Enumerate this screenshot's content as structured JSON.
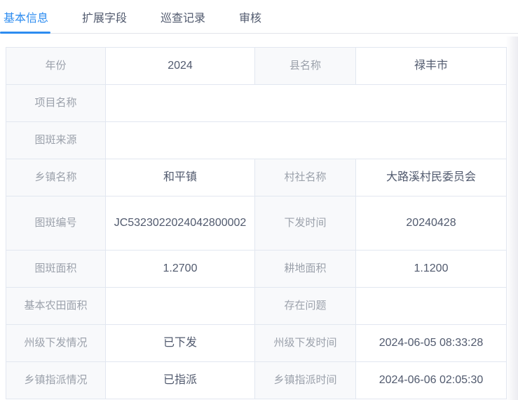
{
  "tabs": {
    "items": [
      {
        "label": "基本信息",
        "active": true
      },
      {
        "label": "扩展字段",
        "active": false
      },
      {
        "label": "巡查记录",
        "active": false
      },
      {
        "label": "审核",
        "active": false
      }
    ]
  },
  "colors": {
    "primary": "#2d8cf0",
    "tab_inactive_text": "#515a6e",
    "table_border": "#e2e7f0",
    "label_cell_bg": "#f8f9fb",
    "label_text": "#9ba1ab",
    "value_text": "#515a6e"
  },
  "detail_table": {
    "rows": [
      {
        "tall": false,
        "span_full": false,
        "pairs": [
          {
            "label": "年份",
            "value": "2024"
          },
          {
            "label": "县名称",
            "value": "禄丰市"
          }
        ]
      },
      {
        "tall": false,
        "span_full": true,
        "pairs": [
          {
            "label": "项目名称",
            "value": ""
          }
        ]
      },
      {
        "tall": false,
        "span_full": true,
        "pairs": [
          {
            "label": "图斑来源",
            "value": ""
          }
        ]
      },
      {
        "tall": false,
        "span_full": false,
        "pairs": [
          {
            "label": "乡镇名称",
            "value": "和平镇"
          },
          {
            "label": "村社名称",
            "value": "大路溪村民委员会"
          }
        ]
      },
      {
        "tall": true,
        "span_full": false,
        "pairs": [
          {
            "label": "图斑编号",
            "value": "JC5323022024042800002"
          },
          {
            "label": "下发时间",
            "value": "20240428"
          }
        ]
      },
      {
        "tall": false,
        "span_full": false,
        "pairs": [
          {
            "label": "图斑面积",
            "value": "1.2700"
          },
          {
            "label": "耕地面积",
            "value": "1.1200"
          }
        ]
      },
      {
        "tall": false,
        "span_full": false,
        "pairs": [
          {
            "label": "基本农田面积",
            "value": ""
          },
          {
            "label": "存在问题",
            "value": ""
          }
        ]
      },
      {
        "tall": false,
        "span_full": false,
        "pairs": [
          {
            "label": "州级下发情况",
            "value": "已下发"
          },
          {
            "label": "州级下发时间",
            "value": "2024-06-05 08:33:28"
          }
        ]
      },
      {
        "tall": false,
        "span_full": false,
        "pairs": [
          {
            "label": "乡镇指派情况",
            "value": "已指派"
          },
          {
            "label": "乡镇指派时间",
            "value": "2024-06-06 02:05:30"
          }
        ]
      }
    ]
  }
}
